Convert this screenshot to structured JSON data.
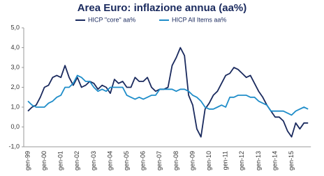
{
  "chart_data": {
    "type": "line",
    "title": "Area Euro: inflazione annua (aa%)",
    "categories": [
      "gen-99",
      null,
      null,
      null,
      "gen-00",
      null,
      null,
      null,
      "gen-01",
      null,
      null,
      null,
      "gen-02",
      null,
      null,
      null,
      "gen-03",
      null,
      null,
      null,
      "gen-04",
      null,
      null,
      null,
      "gen-05",
      null,
      null,
      null,
      "gen-06",
      null,
      null,
      null,
      "gen-07",
      null,
      null,
      null,
      "gen-08",
      null,
      null,
      null,
      "gen-09",
      null,
      null,
      null,
      "gen-10",
      null,
      null,
      null,
      "gen-11",
      null,
      null,
      null,
      "gen-12",
      null,
      null,
      null,
      "gen-13",
      null,
      null,
      null,
      "gen-14",
      null,
      null,
      null,
      "gen-15",
      null,
      null,
      null,
      null
    ],
    "series": [
      {
        "name": "HICP \"core\" aa%",
        "color": "#1a2a5e",
        "values": [
          0.8,
          1.0,
          1.1,
          1.5,
          2.0,
          2.1,
          2.5,
          2.6,
          2.5,
          3.1,
          2.5,
          2.1,
          2.5,
          2.0,
          2.1,
          2.3,
          2.2,
          1.9,
          2.1,
          2.0,
          1.7,
          2.4,
          2.2,
          2.3,
          2.0,
          2.0,
          2.5,
          2.3,
          2.3,
          2.5,
          2.0,
          1.8,
          1.9,
          1.9,
          2.0,
          3.1,
          3.5,
          4.0,
          3.6,
          1.6,
          1.1,
          -0.1,
          -0.5,
          0.9,
          1.2,
          1.6,
          1.8,
          2.2,
          2.6,
          2.7,
          3.0,
          2.9,
          2.7,
          2.5,
          2.6,
          2.2,
          1.8,
          1.5,
          1.1,
          0.8,
          0.5,
          0.5,
          0.3,
          -0.2,
          -0.5,
          0.2,
          -0.1,
          0.2,
          0.2
        ]
      },
      {
        "name": "HICP All Items aa%",
        "color": "#1f8dc9",
        "values": [
          1.3,
          1.1,
          1.0,
          1.0,
          1.0,
          1.2,
          1.3,
          1.5,
          1.6,
          2.0,
          2.0,
          2.2,
          2.6,
          2.5,
          2.3,
          2.3,
          2.0,
          1.8,
          1.9,
          1.8,
          2.0,
          2.0,
          2.0,
          2.0,
          1.6,
          1.5,
          1.4,
          1.5,
          1.4,
          1.5,
          1.6,
          1.6,
          1.9,
          1.9,
          1.9,
          1.9,
          1.8,
          1.9,
          1.9,
          1.8,
          1.6,
          1.5,
          1.3,
          1.0,
          0.9,
          0.9,
          1.0,
          1.1,
          1.0,
          1.5,
          1.5,
          1.6,
          1.6,
          1.6,
          1.5,
          1.5,
          1.3,
          1.2,
          1.1,
          0.8,
          0.8,
          0.8,
          0.8,
          0.7,
          0.6,
          0.8,
          0.9,
          1.0,
          0.9
        ]
      }
    ],
    "ylim": [
      -1,
      5
    ],
    "yticks": [
      {
        "value": -1,
        "label": "-1,0"
      },
      {
        "value": 0,
        "label": "0,0"
      },
      {
        "value": 1,
        "label": "1,0"
      },
      {
        "value": 2,
        "label": "2,0"
      },
      {
        "value": 3,
        "label": "3,0"
      },
      {
        "value": 4,
        "label": "4,0"
      },
      {
        "value": 5,
        "label": "5,0"
      }
    ]
  }
}
